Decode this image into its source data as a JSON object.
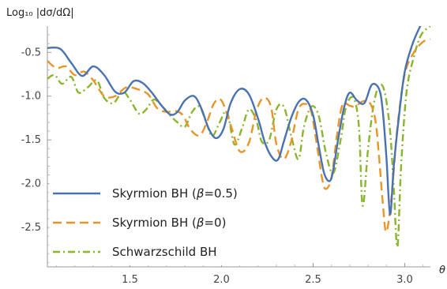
{
  "chart_data": {
    "type": "line",
    "ylabel": "Log₁₀ |dσ/dΩ|",
    "xlabel": "θ",
    "xlim": [
      1.05,
      3.14
    ],
    "ylim": [
      -2.95,
      -0.2
    ],
    "x_ticks": [
      1.5,
      2.0,
      2.5,
      3.0
    ],
    "x_tick_labels": [
      "1.5",
      "2.0",
      "2.5",
      "3.0"
    ],
    "y_ticks": [
      -0.5,
      -1.0,
      -1.5,
      -2.0,
      -2.5
    ],
    "y_tick_labels": [
      "-0.5",
      "-1.0",
      "-1.5",
      "-2.0",
      "-2.5"
    ],
    "legend_position": "bottom-left",
    "grid": false,
    "series": [
      {
        "name": "Skyrmion BH (β=0.5)",
        "legend_prefix": "Skyrmion BH (",
        "legend_symbol": "β",
        "legend_suffix": "=0.5)",
        "color": "#4a72b0",
        "dash": "solid",
        "x": [
          1.05,
          1.12,
          1.18,
          1.24,
          1.3,
          1.36,
          1.42,
          1.47,
          1.52,
          1.57,
          1.62,
          1.67,
          1.72,
          1.76,
          1.8,
          1.85,
          1.89,
          1.93,
          1.97,
          2.01,
          2.05,
          2.1,
          2.15,
          2.2,
          2.24,
          2.28,
          2.31,
          2.34,
          2.38,
          2.42,
          2.46,
          2.5,
          2.53,
          2.56,
          2.59,
          2.61,
          2.64,
          2.67,
          2.7,
          2.74,
          2.78,
          2.82,
          2.86,
          2.88,
          2.9,
          2.92,
          2.94,
          2.97,
          3.0,
          3.04,
          3.08,
          3.11,
          3.14
        ],
        "values": [
          -0.45,
          -0.46,
          -0.62,
          -0.77,
          -0.66,
          -0.76,
          -0.95,
          -0.96,
          -0.83,
          -0.85,
          -0.96,
          -1.1,
          -1.21,
          -1.18,
          -1.05,
          -1.0,
          -1.14,
          -1.37,
          -1.48,
          -1.38,
          -1.08,
          -0.92,
          -0.98,
          -1.26,
          -1.55,
          -1.71,
          -1.72,
          -1.52,
          -1.25,
          -1.07,
          -1.04,
          -1.22,
          -1.56,
          -1.88,
          -1.97,
          -1.84,
          -1.45,
          -1.12,
          -0.96,
          -1.05,
          -1.08,
          -0.87,
          -0.92,
          -1.17,
          -1.7,
          -2.35,
          -1.8,
          -1.2,
          -0.72,
          -0.42,
          -0.22,
          -0.12,
          -0.1
        ]
      },
      {
        "name": "Skyrmion BH (β=0)",
        "legend_prefix": "Skyrmion BH (",
        "legend_symbol": "β",
        "legend_suffix": "=0)",
        "color": "#e89527",
        "dash": "11,6",
        "x": [
          1.05,
          1.1,
          1.15,
          1.2,
          1.25,
          1.3,
          1.36,
          1.42,
          1.48,
          1.54,
          1.6,
          1.65,
          1.7,
          1.75,
          1.79,
          1.83,
          1.88,
          1.92,
          1.96,
          2.0,
          2.05,
          2.1,
          2.15,
          2.19,
          2.23,
          2.27,
          2.3,
          2.34,
          2.38,
          2.42,
          2.46,
          2.49,
          2.52,
          2.55,
          2.57,
          2.6,
          2.63,
          2.66,
          2.7,
          2.73,
          2.77,
          2.81,
          2.84,
          2.86,
          2.88,
          2.9,
          2.93,
          2.96,
          3.0,
          3.05,
          3.1,
          3.14
        ],
        "values": [
          -0.6,
          -0.68,
          -0.66,
          -0.76,
          -0.72,
          -0.82,
          -1.0,
          -1.0,
          -0.9,
          -0.92,
          -0.98,
          -1.14,
          -1.18,
          -1.17,
          -1.22,
          -1.38,
          -1.45,
          -1.3,
          -1.08,
          -1.05,
          -1.33,
          -1.63,
          -1.53,
          -1.17,
          -1.02,
          -1.12,
          -1.55,
          -1.72,
          -1.52,
          -1.15,
          -1.09,
          -1.18,
          -1.55,
          -1.95,
          -2.06,
          -1.93,
          -1.45,
          -1.1,
          -1.11,
          -1.12,
          -1.06,
          -1.08,
          -1.28,
          -1.7,
          -2.22,
          -2.55,
          -2.1,
          -1.35,
          -0.75,
          -0.5,
          -0.38,
          -0.35
        ]
      },
      {
        "name": "Schwarzschild BH",
        "legend_prefix": "Schwarzschild BH",
        "legend_symbol": "",
        "legend_suffix": "",
        "color": "#8ab52c",
        "dash": "9,4,2,4",
        "x": [
          1.05,
          1.09,
          1.13,
          1.18,
          1.22,
          1.27,
          1.32,
          1.36,
          1.41,
          1.46,
          1.5,
          1.55,
          1.59,
          1.63,
          1.67,
          1.72,
          1.76,
          1.8,
          1.84,
          1.88,
          1.92,
          1.95,
          1.99,
          2.03,
          2.07,
          2.11,
          2.15,
          2.19,
          2.22,
          2.26,
          2.3,
          2.34,
          2.38,
          2.42,
          2.45,
          2.49,
          2.53,
          2.57,
          2.61,
          2.65,
          2.68,
          2.72,
          2.75,
          2.77,
          2.8,
          2.83,
          2.86,
          2.89,
          2.92,
          2.94,
          2.96,
          2.98,
          3.01,
          3.05,
          3.09,
          3.14
        ],
        "values": [
          -0.8,
          -0.76,
          -0.86,
          -0.78,
          -0.96,
          -0.9,
          -0.82,
          -1.02,
          -1.08,
          -0.95,
          -1.04,
          -1.2,
          -1.15,
          -1.04,
          -1.1,
          -1.22,
          -1.3,
          -1.35,
          -1.18,
          -1.12,
          -1.32,
          -1.46,
          -1.3,
          -1.18,
          -1.55,
          -1.38,
          -1.15,
          -1.28,
          -1.52,
          -1.5,
          -1.15,
          -1.12,
          -1.45,
          -1.72,
          -1.35,
          -1.12,
          -1.22,
          -1.65,
          -1.88,
          -1.5,
          -1.12,
          -1.02,
          -1.35,
          -2.25,
          -1.6,
          -1.1,
          -0.88,
          -0.95,
          -1.4,
          -2.05,
          -2.72,
          -1.8,
          -0.95,
          -0.55,
          -0.3,
          -0.2
        ]
      }
    ]
  }
}
